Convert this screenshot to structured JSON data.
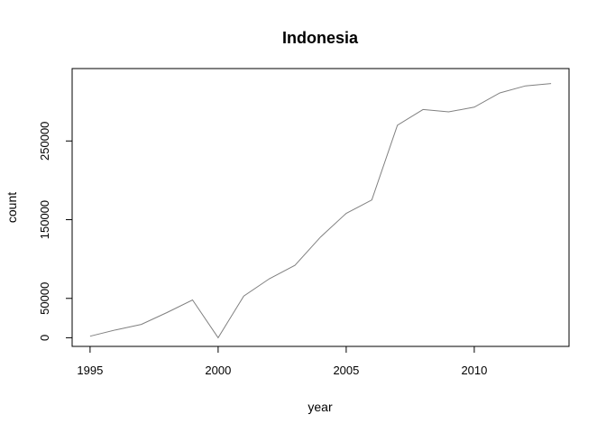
{
  "chart_data": {
    "type": "line",
    "title": "Indonesia",
    "xlabel": "year",
    "ylabel": "count",
    "xlim": [
      1994.3,
      2013.7
    ],
    "ylim": [
      -11000,
      342000
    ],
    "x_ticks": [
      1995,
      2000,
      2005,
      2010
    ],
    "x_tick_labels": [
      "1995",
      "2000",
      "2005",
      "2010"
    ],
    "y_ticks": [
      0,
      50000,
      150000,
      250000
    ],
    "y_tick_labels": [
      "0",
      "50000",
      "150000",
      "250000"
    ],
    "grid": false,
    "line_color": "#808080",
    "series": [
      {
        "x": [
          1995,
          1996,
          1997,
          1998,
          1999,
          2000,
          2001,
          2002,
          2003,
          2004,
          2005,
          2006,
          2007,
          2008,
          2009,
          2010,
          2011,
          2012,
          2013
        ],
        "y": [
          2000,
          10000,
          17000,
          32000,
          48000,
          0,
          53000,
          75000,
          92000,
          128000,
          158000,
          175000,
          270000,
          290000,
          287000,
          293000,
          311000,
          320000,
          323000
        ]
      }
    ]
  }
}
